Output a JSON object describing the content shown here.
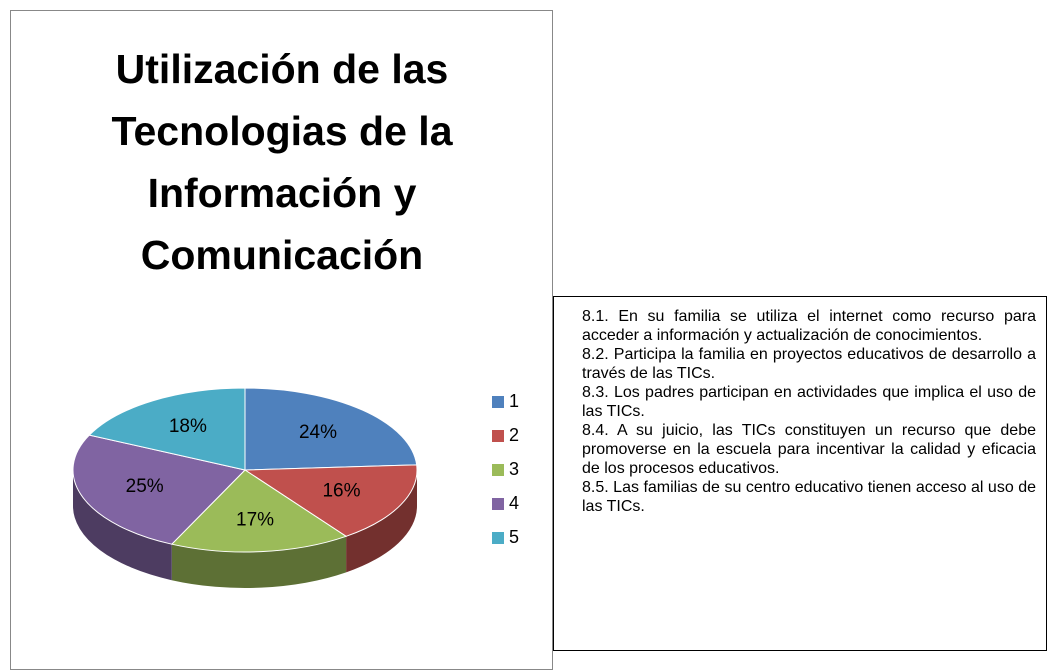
{
  "chart_data": {
    "type": "pie",
    "title": "Utilización de las Tecnologias de la Información y Comunicación",
    "categories": [
      "1",
      "2",
      "3",
      "4",
      "5"
    ],
    "values": [
      24,
      16,
      17,
      25,
      18
    ],
    "value_labels": [
      "24%",
      "16%",
      "17%",
      "25%",
      "18%"
    ],
    "colors": [
      "#4f81bd",
      "#c0504d",
      "#9bbb59",
      "#8064a2",
      "#4bacc6"
    ],
    "legend": "right"
  },
  "text_box": {
    "paragraphs": [
      "8.1. En su  familia se utiliza el  internet como recurso para acceder a información y actualización de conocimientos.",
      "8.2. Participa la familia en proyectos educativos de desarrollo a través de las  TICs.",
      "8.3. Los padres participan en actividades que implica el uso de las TICs.",
      "8.4. A su juicio, las TICs constituyen un recurso que debe promoverse en la escuela para incentivar la calidad y eficacia de los procesos educativos.",
      "8.5. Las familias de su centro educativo tienen acceso al uso de las TICs."
    ]
  }
}
